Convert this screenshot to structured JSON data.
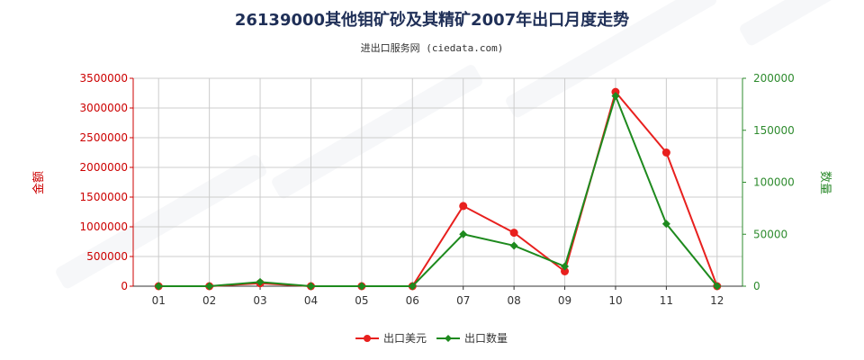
{
  "chart_data": {
    "type": "line",
    "title": "26139000其他钼矿砂及其精矿2007年出口月度走势",
    "subtitle": "进出口服务网 (ciedata.com)",
    "categories": [
      "01",
      "02",
      "03",
      "04",
      "05",
      "06",
      "07",
      "08",
      "09",
      "10",
      "11",
      "12"
    ],
    "ylabel_left": "金额",
    "ylabel_right": "数量",
    "ylim_left": [
      0,
      3500000
    ],
    "ylim_right": [
      0,
      200000
    ],
    "yticks_left": [
      "0",
      "500000",
      "1000000",
      "1500000",
      "2000000",
      "2500000",
      "3000000",
      "3500000"
    ],
    "yticks_right": [
      "0",
      "50000",
      "100000",
      "150000",
      "200000"
    ],
    "grid": true,
    "legend_position": "bottom",
    "series": [
      {
        "name": "出口美元",
        "axis": "left",
        "color": "#e8201e",
        "values": [
          0,
          0,
          50000,
          0,
          0,
          0,
          1350000,
          900000,
          250000,
          3270000,
          2250000,
          0
        ]
      },
      {
        "name": "出口数量",
        "axis": "right",
        "color": "#1e8a1e",
        "values": [
          0,
          0,
          4000,
          0,
          0,
          0,
          50000,
          39000,
          19000,
          183000,
          60000,
          0
        ]
      }
    ]
  }
}
